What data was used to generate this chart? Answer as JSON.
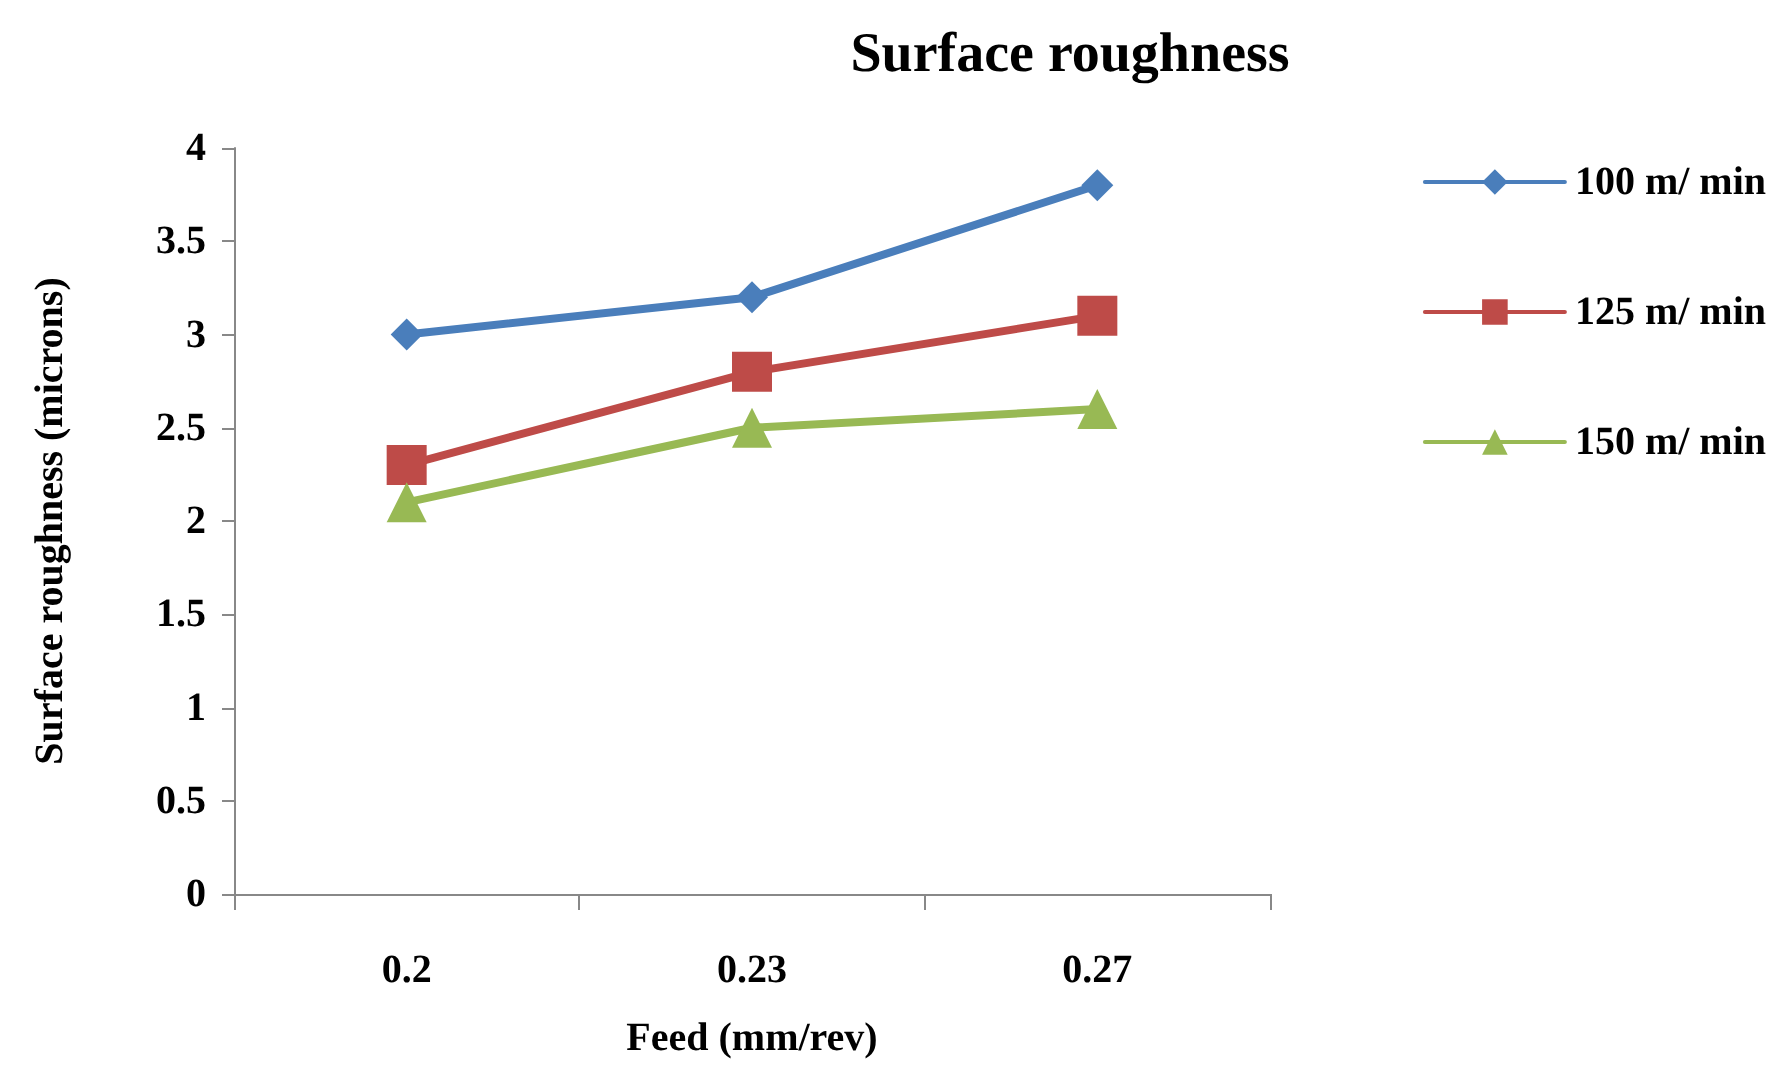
{
  "chart_data": {
    "type": "line",
    "title": "Surface roughness",
    "xlabel": "Feed (mm/rev)",
    "ylabel": "Surface roughness (microns)",
    "categories": [
      "0.2",
      "0.23",
      "0.27"
    ],
    "series": [
      {
        "name": "100 m/ min",
        "color": "#4a7ebb",
        "marker": "diamond",
        "values": [
          3.0,
          3.2,
          3.8
        ]
      },
      {
        "name": "125 m/ min",
        "color": "#be4b48",
        "marker": "square",
        "values": [
          2.3,
          2.8,
          3.1
        ]
      },
      {
        "name": "150 m/ min",
        "color": "#98b954",
        "marker": "triangle",
        "values": [
          2.1,
          2.5,
          2.6
        ]
      }
    ],
    "ylim": [
      0,
      4
    ],
    "yticks": [
      0,
      0.5,
      1,
      1.5,
      2,
      2.5,
      3,
      3.5,
      4
    ],
    "grid": false,
    "legend": "right",
    "line_style": "solid"
  }
}
